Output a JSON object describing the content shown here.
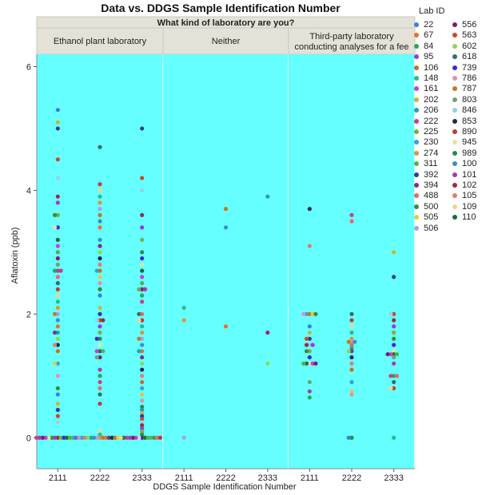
{
  "chart_data": {
    "type": "scatter",
    "title": "Data vs. DDGS Sample Identification Number",
    "panel_header": "What kind of laboratory are you?",
    "panels": [
      "Ethanol plant laboratory",
      "Neither",
      "Third-party laboratory\nconducting analyses for a fee"
    ],
    "categories": [
      "2111",
      "2222",
      "2333"
    ],
    "xlabel": "DDGS Sample Identification Number",
    "ylabel": "Aflatoxin (ppb)",
    "ylim": [
      -0.5,
      6.2
    ],
    "y_ticks": [
      "0",
      "2",
      "4",
      "6"
    ],
    "background_color": "#66ffff",
    "legend": {
      "title": "Lab ID",
      "position": "right",
      "entries": [
        {
          "label": "22",
          "color": "#3f7fd9"
        },
        {
          "label": "67",
          "color": "#e8702a"
        },
        {
          "label": "84",
          "color": "#2aa74a"
        },
        {
          "label": "95",
          "color": "#9a3bd1"
        },
        {
          "label": "106",
          "color": "#cc6d1e"
        },
        {
          "label": "148",
          "color": "#2fb68f"
        },
        {
          "label": "161",
          "color": "#c93fd4"
        },
        {
          "label": "202",
          "color": "#c2b83a"
        },
        {
          "label": "206",
          "color": "#2aa0a8"
        },
        {
          "label": "222",
          "color": "#d13a8e"
        },
        {
          "label": "225",
          "color": "#7fae3a"
        },
        {
          "label": "230",
          "color": "#3e9fc6"
        },
        {
          "label": "274",
          "color": "#e0933a"
        },
        {
          "label": "311",
          "color": "#55b04a"
        },
        {
          "label": "392",
          "color": "#2f3f8f"
        },
        {
          "label": "394",
          "color": "#8a2b8a"
        },
        {
          "label": "488",
          "color": "#e96a5a"
        },
        {
          "label": "500",
          "color": "#3d8a3a"
        },
        {
          "label": "505",
          "color": "#e0cc3a"
        },
        {
          "label": "506",
          "color": "#a7a3e0"
        },
        {
          "label": "556",
          "color": "#7a1e6a"
        },
        {
          "label": "563",
          "color": "#d0452a"
        },
        {
          "label": "602",
          "color": "#8ed84a"
        },
        {
          "label": "618",
          "color": "#2f6f6f"
        },
        {
          "label": "739",
          "color": "#3a2ad0"
        },
        {
          "label": "786",
          "color": "#e88ab8"
        },
        {
          "label": "787",
          "color": "#c07a1e"
        },
        {
          "label": "803",
          "color": "#6aa86a"
        },
        {
          "label": "846",
          "color": "#8fd4e8"
        },
        {
          "label": "853",
          "color": "#1e2a5a"
        },
        {
          "label": "890",
          "color": "#c03a3a"
        },
        {
          "label": "945",
          "color": "#e8e0a0"
        },
        {
          "label": "989",
          "color": "#2e8b3a"
        },
        {
          "label": "100",
          "color": "#3a8fc8"
        },
        {
          "label": "101",
          "color": "#a83ab0"
        },
        {
          "label": "102",
          "color": "#9a2a4a"
        },
        {
          "label": "105",
          "color": "#e87a6a"
        },
        {
          "label": "109",
          "color": "#f0d48a"
        },
        {
          "label": "110",
          "color": "#1e6a3a"
        }
      ]
    },
    "series": [
      {
        "panel": "Ethanol plant laboratory",
        "x": "2111",
        "y": [
          5.3,
          5.1,
          5.0,
          4.5,
          4.2,
          3.9,
          3.8,
          3.6,
          3.6,
          3.4,
          3.4,
          3.2,
          3.1,
          3.0,
          2.9,
          2.8,
          2.7,
          2.7,
          2.7,
          2.6,
          2.5,
          2.4,
          2.3,
          2.2,
          2.1,
          2.0,
          2.0,
          1.9,
          1.8,
          1.7,
          1.7,
          1.6,
          1.5,
          1.5,
          1.4,
          1.2,
          1.2,
          1.0,
          0.8,
          0.7,
          0.55,
          0.45,
          0.35,
          0.25,
          0,
          0,
          0,
          0,
          0,
          0,
          0,
          0,
          0,
          0,
          0,
          0,
          0,
          0,
          0
        ]
      },
      {
        "panel": "Ethanol plant laboratory",
        "x": "2222",
        "y": [
          4.7,
          4.1,
          4.0,
          3.9,
          3.8,
          3.7,
          3.6,
          3.5,
          3.4,
          3.2,
          3.1,
          3.0,
          2.9,
          2.8,
          2.7,
          2.7,
          2.6,
          2.5,
          2.4,
          2.3,
          2.1,
          2.0,
          1.9,
          1.9,
          1.9,
          1.8,
          1.7,
          1.6,
          1.6,
          1.5,
          1.4,
          1.4,
          1.4,
          1.3,
          1.3,
          1.1,
          1.0,
          0.9,
          0.8,
          0.7,
          0.55,
          0.1,
          0.05,
          0,
          0,
          0,
          0,
          0,
          0,
          0,
          0,
          0,
          0,
          0,
          0,
          0,
          0,
          0,
          0,
          0
        ]
      },
      {
        "panel": "Ethanol plant laboratory",
        "x": "2333",
        "y": [
          5.0,
          4.2,
          4.0,
          3.6,
          3.4,
          3.2,
          3.0,
          2.9,
          2.8,
          2.7,
          2.6,
          2.5,
          2.4,
          2.4,
          2.4,
          2.3,
          2.2,
          2.0,
          2.0,
          1.9,
          1.9,
          1.8,
          1.7,
          1.6,
          1.6,
          1.5,
          1.4,
          1.4,
          1.3,
          1.2,
          1.1,
          1.0,
          0.9,
          0.8,
          0.7,
          0.6,
          0.5,
          0.45,
          0.4,
          0.35,
          0.3,
          0.25,
          0.2,
          0.15,
          0.1,
          0.05,
          0,
          0,
          0,
          0,
          0,
          0,
          0,
          0,
          0,
          0,
          0,
          0,
          0,
          0
        ]
      },
      {
        "panel": "Neither",
        "x": "2111",
        "y": [
          2.1,
          1.9,
          0
        ]
      },
      {
        "panel": "Neither",
        "x": "2222",
        "y": [
          3.7,
          3.4,
          1.8
        ]
      },
      {
        "panel": "Neither",
        "x": "2333",
        "y": [
          3.9,
          1.7,
          1.2
        ]
      },
      {
        "panel": "Third-party laboratory\nconducting analyses for a fee",
        "x": "2111",
        "y": [
          3.7,
          3.1,
          2.0,
          2.0,
          2.0,
          2.0,
          2.0,
          1.8,
          1.7,
          1.6,
          1.6,
          1.5,
          1.5,
          1.5,
          1.4,
          1.4,
          1.3,
          1.2,
          1.2,
          1.2,
          1.2,
          1.2,
          0.9,
          0.75,
          0.65
        ]
      },
      {
        "panel": "Third-party laboratory\nconducting analyses for a fee",
        "x": "2222",
        "y": [
          3.6,
          3.5,
          2.0,
          1.9,
          1.8,
          1.7,
          1.6,
          1.55,
          1.55,
          1.55,
          1.5,
          1.45,
          1.4,
          1.4,
          1.3,
          1.2,
          1.1,
          0.9,
          0.75,
          0.7,
          0,
          0
        ]
      },
      {
        "panel": "Third-party laboratory\nconducting analyses for a fee",
        "x": "2333",
        "y": [
          3.0,
          2.6,
          2.0,
          2.0,
          1.9,
          1.8,
          1.7,
          1.6,
          1.5,
          1.4,
          1.35,
          1.35,
          1.35,
          1.35,
          1.3,
          1.2,
          1.0,
          1.0,
          1.0,
          0.9,
          0.8,
          0.8,
          0
        ]
      }
    ]
  }
}
